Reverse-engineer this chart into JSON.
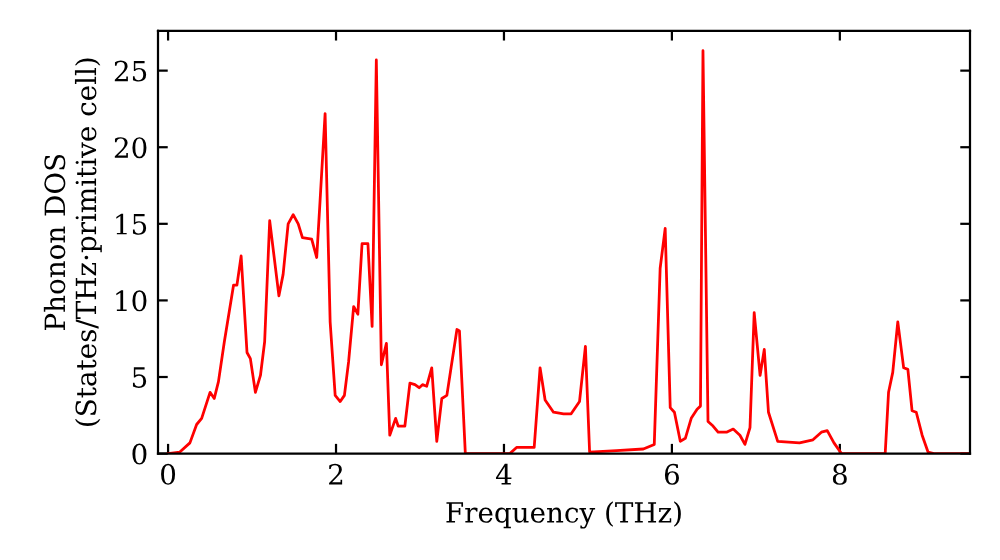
{
  "chart_data": {
    "type": "line",
    "xlabel": "Frequency (THz)",
    "ylabel": "Phonon DOS\n(States/THz·primitive cell)",
    "xlim": [
      -0.12,
      9.55
    ],
    "ylim": [
      0,
      27.6
    ],
    "xticks": [
      0,
      2,
      4,
      6,
      8
    ],
    "yticks": [
      0,
      5,
      10,
      15,
      20,
      25
    ],
    "grid": false,
    "legend": false,
    "marker": "none",
    "line_style": "solid",
    "series": [
      {
        "color": "#ff0000",
        "x": [
          0,
          0.14,
          0.26,
          0.34,
          0.4,
          0.5,
          0.55,
          0.6,
          0.67,
          0.78,
          0.82,
          0.87,
          0.94,
          0.98,
          1.04,
          1.1,
          1.15,
          1.21,
          1.32,
          1.37,
          1.43,
          1.49,
          1.55,
          1.6,
          1.71,
          1.77,
          1.81,
          1.87,
          1.93,
          1.99,
          2.05,
          2.1,
          2.15,
          2.21,
          2.26,
          2.31,
          2.38,
          2.43,
          2.48,
          2.54,
          2.6,
          2.64,
          2.71,
          2.74,
          2.82,
          2.88,
          2.94,
          2.99,
          3.03,
          3.08,
          3.14,
          3.2,
          3.26,
          3.32,
          3.37,
          3.44,
          3.47,
          3.54,
          4.07,
          4.15,
          4.36,
          4.43,
          4.49,
          4.59,
          4.71,
          4.8,
          4.9,
          4.97,
          5.02,
          5.34,
          5.66,
          5.79,
          5.86,
          5.92,
          5.98,
          6.03,
          6.1,
          6.16,
          6.23,
          6.3,
          6.34,
          6.37,
          6.43,
          6.49,
          6.55,
          6.65,
          6.73,
          6.81,
          6.87,
          6.93,
          6.98,
          7.05,
          7.1,
          7.15,
          7.26,
          7.52,
          7.68,
          7.78,
          7.85,
          7.93,
          8.02,
          8.54,
          8.58,
          8.63,
          8.69,
          8.76,
          8.81,
          8.86,
          8.91,
          8.98,
          9.05,
          9.12,
          9.55
        ],
        "values": [
          0,
          0.1,
          0.7,
          1.9,
          2.3,
          4.0,
          3.6,
          4.7,
          7.3,
          11.0,
          11.0,
          12.9,
          6.6,
          6.2,
          4.0,
          5.1,
          7.3,
          15.2,
          10.3,
          11.7,
          15.0,
          15.6,
          15.0,
          14.1,
          14.0,
          12.8,
          16.5,
          22.2,
          8.6,
          3.8,
          3.4,
          3.8,
          6.0,
          9.6,
          9.1,
          13.7,
          13.7,
          8.3,
          25.7,
          5.8,
          7.2,
          1.2,
          2.3,
          1.8,
          1.8,
          4.6,
          4.5,
          4.3,
          4.5,
          4.4,
          5.6,
          0.8,
          3.6,
          3.8,
          5.6,
          8.1,
          8.0,
          0,
          0,
          0.4,
          0.4,
          5.6,
          3.5,
          2.7,
          2.6,
          2.6,
          3.4,
          7.0,
          0.1,
          0.2,
          0.3,
          0.6,
          12.1,
          14.7,
          3.0,
          2.7,
          0.8,
          1.0,
          2.3,
          2.9,
          3.1,
          26.3,
          2.1,
          1.8,
          1.4,
          1.4,
          1.6,
          1.2,
          0.6,
          1.7,
          9.2,
          5.1,
          6.8,
          2.7,
          0.8,
          0.7,
          0.9,
          1.4,
          1.5,
          0.7,
          0,
          0,
          4.0,
          5.3,
          8.6,
          5.6,
          5.5,
          2.8,
          2.7,
          1.2,
          0.1,
          0,
          0
        ]
      }
    ]
  }
}
